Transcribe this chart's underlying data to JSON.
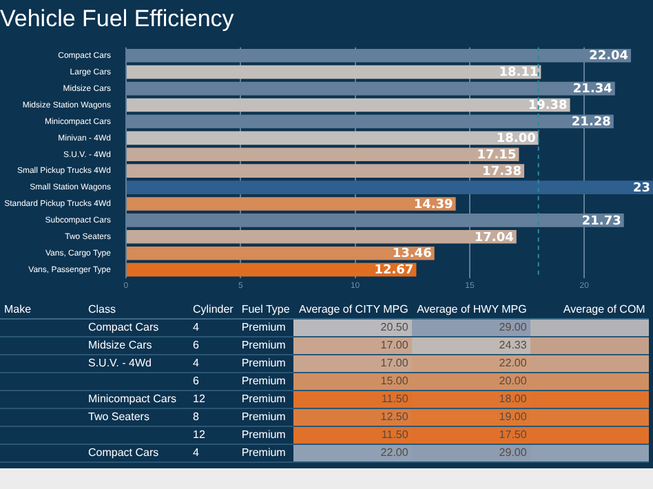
{
  "chart_data": [
    {
      "type": "bar",
      "title": "Vehicle Fuel Efficiency",
      "orientation": "horizontal",
      "categories": [
        "Compact Cars",
        "Large Cars",
        "Midsize Cars",
        "Midsize Station Wagons",
        "Minicompact Cars",
        "Minivan - 4Wd",
        "S.U.V. - 4Wd",
        "Small Pickup Trucks 4Wd",
        "Small Station Wagons",
        "Standard Pickup Trucks 4Wd",
        "Subcompact Cars",
        "Two Seaters",
        "Vans, Cargo Type",
        "Vans, Passenger Type"
      ],
      "values": [
        22.04,
        18.11,
        21.34,
        19.38,
        21.28,
        18.0,
        17.15,
        17.38,
        23,
        14.39,
        21.73,
        17.04,
        13.46,
        12.67
      ],
      "value_labels": [
        "22.04",
        "18.11",
        "21.34",
        "19.38",
        "21.28",
        "18.00",
        "17.15",
        "17.38",
        "23",
        "14.39",
        "21.73",
        "17.04",
        "13.46",
        "12.67"
      ],
      "colors": [
        "#637f9b",
        "#c2bebb",
        "#637f9b",
        "#c2bebb",
        "#637f9b",
        "#c2bebb",
        "#c4aa9a",
        "#c4aa9a",
        "#2f5f8e",
        "#d68b58",
        "#637f9b",
        "#c4aa9a",
        "#d68b58",
        "#e06e22"
      ],
      "xlim": [
        0,
        23
      ],
      "xticks": [
        0,
        5,
        10,
        15,
        20
      ],
      "grid": "x",
      "ref_lines": [
        {
          "axis": "x",
          "value": 18.0,
          "color": "#2b8c9c",
          "line_style": "dashed"
        }
      ]
    },
    {
      "type": "other",
      "categories": [
        "Make",
        "Class",
        "Cylinder",
        "Fuel Type",
        "Average of CITY MPG",
        "Average of HWY MPG",
        "Average of COM"
      ],
      "cells": [
        [
          null,
          "Compact Cars",
          "4",
          "Premium",
          "20.50",
          "29.00",
          null
        ],
        [
          null,
          "Midsize Cars",
          "6",
          "Premium",
          "17.00",
          "24.33",
          null
        ],
        [
          null,
          "S.U.V. - 4Wd",
          "4",
          "Premium",
          "17.00",
          "22.00",
          null
        ],
        [
          null,
          null,
          "6",
          "Premium",
          "15.00",
          "20.00",
          null
        ],
        [
          null,
          "Minicompact Cars",
          "12",
          "Premium",
          "11.50",
          "18.00",
          null
        ],
        [
          null,
          "Two Seaters",
          "8",
          "Premium",
          "12.50",
          "19.00",
          null
        ],
        [
          null,
          null,
          "12",
          "Premium",
          "11.50",
          "17.50",
          null
        ],
        [
          null,
          "Compact Cars",
          "4",
          "Premium",
          "22.00",
          "29.00",
          null
        ]
      ],
      "colors": [
        [
          "#b9b9bd",
          "#8d9cb1",
          "#b3b3b7"
        ],
        [
          "#c9a58f",
          "#bfb9b5",
          "#c4a08a"
        ],
        [
          "#c9a58f",
          "#cd9f80",
          "#c9a085"
        ],
        [
          "#d08f62",
          "#d08f62",
          "#d08f62"
        ],
        [
          "#e0712a",
          "#e0742e",
          "#e0722b"
        ],
        [
          "#db7c3f",
          "#de7833",
          "#dd7a38"
        ],
        [
          "#e0712a",
          "#e0712a",
          "#e0712a"
        ],
        [
          "#8fa0b4",
          "#8d9cb1",
          "#8fa0b4"
        ]
      ]
    }
  ]
}
